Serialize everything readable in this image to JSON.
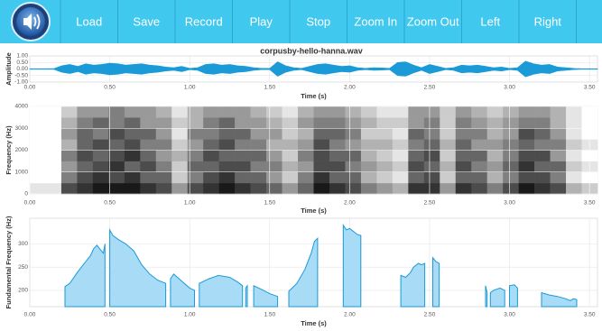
{
  "toolbar": {
    "buttons": [
      "Load",
      "Save",
      "Record",
      "Play",
      "Stop",
      "Zoom In",
      "Zoom Out",
      "Left",
      "Right"
    ]
  },
  "chart_data": [
    {
      "type": "waveform",
      "title": "corpusby-hello-hanna.wav",
      "xlabel": "Time (s)",
      "ylabel": "Amplitude",
      "color": "#1a9ad6",
      "grid": true,
      "xlim": [
        0,
        3.55
      ],
      "ylim": [
        -1,
        1
      ],
      "xticks": [
        {
          "value": 0,
          "label": "0.00"
        },
        {
          "value": 0.5,
          "label": "0.50"
        },
        {
          "value": 1,
          "label": "1.00"
        },
        {
          "value": 1.5,
          "label": "1.50"
        },
        {
          "value": 2,
          "label": "2.00"
        },
        {
          "value": 2.5,
          "label": "2.50"
        },
        {
          "value": 3,
          "label": "3.00"
        },
        {
          "value": 3.5,
          "label": "3.50"
        }
      ],
      "yticks": [
        {
          "value": 1,
          "label": "1.00"
        },
        {
          "value": 0.5,
          "label": "0.50"
        },
        {
          "value": 0,
          "label": "0.00"
        },
        {
          "value": -0.5,
          "label": "-0.50"
        },
        {
          "value": -1,
          "label": "-1.00"
        }
      ],
      "x": [
        0,
        0.05,
        0.1,
        0.15,
        0.2,
        0.25,
        0.3,
        0.35,
        0.4,
        0.45,
        0.5,
        0.55,
        0.6,
        0.65,
        0.7,
        0.75,
        0.8,
        0.85,
        0.9,
        0.95,
        1,
        1.05,
        1.1,
        1.15,
        1.2,
        1.25,
        1.3,
        1.35,
        1.4,
        1.45,
        1.5,
        1.55,
        1.6,
        1.65,
        1.7,
        1.75,
        1.8,
        1.85,
        1.9,
        1.95,
        2,
        2.05,
        2.1,
        2.15,
        2.2,
        2.25,
        2.3,
        2.35,
        2.4,
        2.45,
        2.5,
        2.55,
        2.6,
        2.65,
        2.7,
        2.75,
        2.8,
        2.85,
        2.9,
        2.95,
        3,
        3.05,
        3.1,
        3.15,
        3.2,
        3.25,
        3.3,
        3.35,
        3.4,
        3.45,
        3.5,
        3.55
      ],
      "values": [
        0.02,
        0.02,
        0.02,
        0.03,
        0.25,
        0.35,
        0.2,
        0.4,
        0.3,
        0.35,
        0.45,
        0.4,
        0.3,
        0.35,
        0.4,
        0.3,
        0.25,
        0.15,
        0.1,
        0.2,
        0.05,
        0.1,
        0.35,
        0.4,
        0.3,
        0.35,
        0.25,
        0.2,
        0.1,
        0.05,
        0.05,
        0.55,
        0.25,
        0.1,
        0.05,
        0.2,
        0.35,
        0.4,
        0.3,
        0.2,
        0.25,
        0.1,
        0.05,
        0.1,
        0.08,
        0.05,
        0.5,
        0.55,
        0.3,
        0.1,
        0.35,
        0.2,
        0.05,
        0.1,
        0.3,
        0.25,
        0.3,
        0.2,
        0.1,
        0.15,
        0.05,
        0.1,
        0.6,
        0.4,
        0.3,
        0.35,
        0.15,
        0.1,
        0.05,
        0.02,
        0.02,
        0.02
      ]
    },
    {
      "type": "heatmap",
      "xlabel": "Time (s)",
      "ylabel": "Frequency (Hz)",
      "grid": true,
      "xlim": [
        0,
        3.55
      ],
      "ylim": [
        0,
        4000
      ],
      "xticks": [
        {
          "value": 0,
          "label": "0.00"
        },
        {
          "value": 0.5,
          "label": "0.50"
        },
        {
          "value": 1,
          "label": "1.00"
        },
        {
          "value": 1.5,
          "label": "1.50"
        },
        {
          "value": 2,
          "label": "2.00"
        },
        {
          "value": 2.5,
          "label": "2.50"
        },
        {
          "value": 3,
          "label": "3.00"
        },
        {
          "value": 3.5,
          "label": "3.50"
        }
      ],
      "yticks": [
        0,
        1000,
        2000,
        3000,
        4000
      ],
      "values": [
        [
          1,
          1,
          7,
          8,
          9,
          9,
          9,
          8,
          7,
          4,
          7,
          8,
          9,
          8,
          7,
          6,
          4,
          6,
          9,
          8,
          7,
          5,
          4,
          3,
          8,
          8,
          4,
          8,
          7,
          5,
          7,
          9,
          8,
          7,
          3,
          2
        ],
        [
          0,
          0,
          5,
          7,
          8,
          7,
          8,
          6,
          6,
          2,
          5,
          7,
          8,
          6,
          6,
          4,
          2,
          5,
          8,
          6,
          6,
          3,
          2,
          1,
          6,
          7,
          2,
          6,
          6,
          3,
          5,
          7,
          7,
          5,
          1,
          0
        ],
        [
          0,
          0,
          4,
          6,
          7,
          8,
          6,
          7,
          5,
          2,
          6,
          6,
          7,
          7,
          5,
          5,
          3,
          4,
          7,
          7,
          5,
          4,
          3,
          2,
          7,
          6,
          3,
          7,
          5,
          4,
          6,
          8,
          6,
          6,
          2,
          1
        ],
        [
          0,
          0,
          5,
          7,
          6,
          7,
          8,
          6,
          4,
          3,
          5,
          7,
          6,
          6,
          6,
          4,
          2,
          5,
          7,
          6,
          6,
          3,
          2,
          1,
          6,
          7,
          2,
          6,
          6,
          3,
          5,
          7,
          7,
          4,
          1,
          0
        ],
        [
          0,
          0,
          3,
          6,
          7,
          6,
          7,
          5,
          5,
          2,
          4,
          6,
          7,
          5,
          5,
          3,
          3,
          4,
          7,
          5,
          4,
          3,
          3,
          2,
          5,
          6,
          3,
          6,
          4,
          4,
          5,
          6,
          5,
          5,
          2,
          1
        ],
        [
          0,
          0,
          4,
          6,
          5,
          7,
          6,
          6,
          4,
          1,
          5,
          5,
          6,
          6,
          4,
          4,
          2,
          3,
          6,
          6,
          5,
          2,
          2,
          1,
          6,
          5,
          2,
          5,
          5,
          3,
          4,
          7,
          6,
          4,
          1,
          0
        ],
        [
          0,
          0,
          3,
          5,
          6,
          5,
          6,
          4,
          4,
          2,
          3,
          5,
          6,
          4,
          4,
          3,
          2,
          4,
          5,
          5,
          4,
          3,
          2,
          2,
          4,
          5,
          2,
          5,
          4,
          3,
          4,
          5,
          5,
          3,
          1,
          0
        ],
        [
          0,
          0,
          2,
          4,
          4,
          5,
          4,
          4,
          3,
          1,
          3,
          4,
          4,
          4,
          3,
          2,
          1,
          3,
          4,
          4,
          3,
          2,
          1,
          1,
          4,
          4,
          2,
          4,
          3,
          2,
          3,
          4,
          4,
          3,
          1,
          0
        ]
      ]
    },
    {
      "type": "area",
      "xlabel": "Time (s)",
      "ylabel": "Fundamental Frequency (Hz)",
      "color": "#1a9ad6",
      "grid": true,
      "xlim": [
        0,
        3.55
      ],
      "ylim": [
        165,
        355
      ],
      "xticks": [
        {
          "value": 0,
          "label": "0.00"
        },
        {
          "value": 0.5,
          "label": "0.50"
        },
        {
          "value": 1,
          "label": "1.00"
        },
        {
          "value": 1.5,
          "label": "1.50"
        },
        {
          "value": 2,
          "label": "2.00"
        },
        {
          "value": 2.5,
          "label": "2.50"
        },
        {
          "value": 3,
          "label": "3.00"
        },
        {
          "value": 3.5,
          "label": "3.50"
        }
      ],
      "yticks": [
        200,
        250,
        300
      ],
      "x": [
        0.22,
        0.25,
        0.3,
        0.35,
        0.38,
        0.4,
        0.42,
        0.44,
        0.46,
        0.47,
        0.48,
        0.5,
        0.52,
        0.55,
        0.6,
        0.65,
        0.7,
        0.75,
        0.8,
        0.85,
        0.87,
        0.88,
        0.9,
        0.95,
        1,
        1.03,
        1.05,
        1.06,
        1.12,
        1.18,
        1.25,
        1.3,
        1.33,
        1.34,
        1.35,
        1.36,
        1.37,
        1.4,
        1.45,
        1.5,
        1.55,
        1.57,
        1.62,
        1.67,
        1.72,
        1.76,
        1.78,
        1.8,
        1.82,
        1.96,
        1.98,
        2,
        2.03,
        2.05,
        2.07,
        2.08,
        2.32,
        2.35,
        2.38,
        2.4,
        2.43,
        2.45,
        2.47,
        2.48,
        2.52,
        2.54,
        2.56,
        2.57,
        2.85,
        2.86,
        2.87,
        2.88,
        2.9,
        2.94,
        2.97,
        2.99,
        3,
        3.03,
        3.05,
        3.06,
        3.2,
        3.25,
        3.3,
        3.35,
        3.38,
        3.4,
        3.42
      ],
      "values": [
        208,
        215,
        240,
        262,
        275,
        290,
        297,
        288,
        280,
        300,
        null,
        330,
        318,
        310,
        300,
        285,
        255,
        235,
        222,
        215,
        null,
        225,
        235,
        220,
        205,
        200,
        null,
        215,
        225,
        232,
        228,
        218,
        210,
        null,
        205,
        210,
        null,
        210,
        202,
        193,
        187,
        null,
        198,
        215,
        245,
        280,
        305,
        312,
        null,
        340,
        330,
        333,
        325,
        320,
        318,
        null,
        232,
        228,
        238,
        250,
        258,
        255,
        258,
        null,
        270,
        262,
        258,
        null,
        210,
        195,
        null,
        195,
        200,
        205,
        200,
        null,
        210,
        212,
        205,
        null,
        195,
        190,
        187,
        182,
        178,
        182,
        180
      ]
    }
  ]
}
